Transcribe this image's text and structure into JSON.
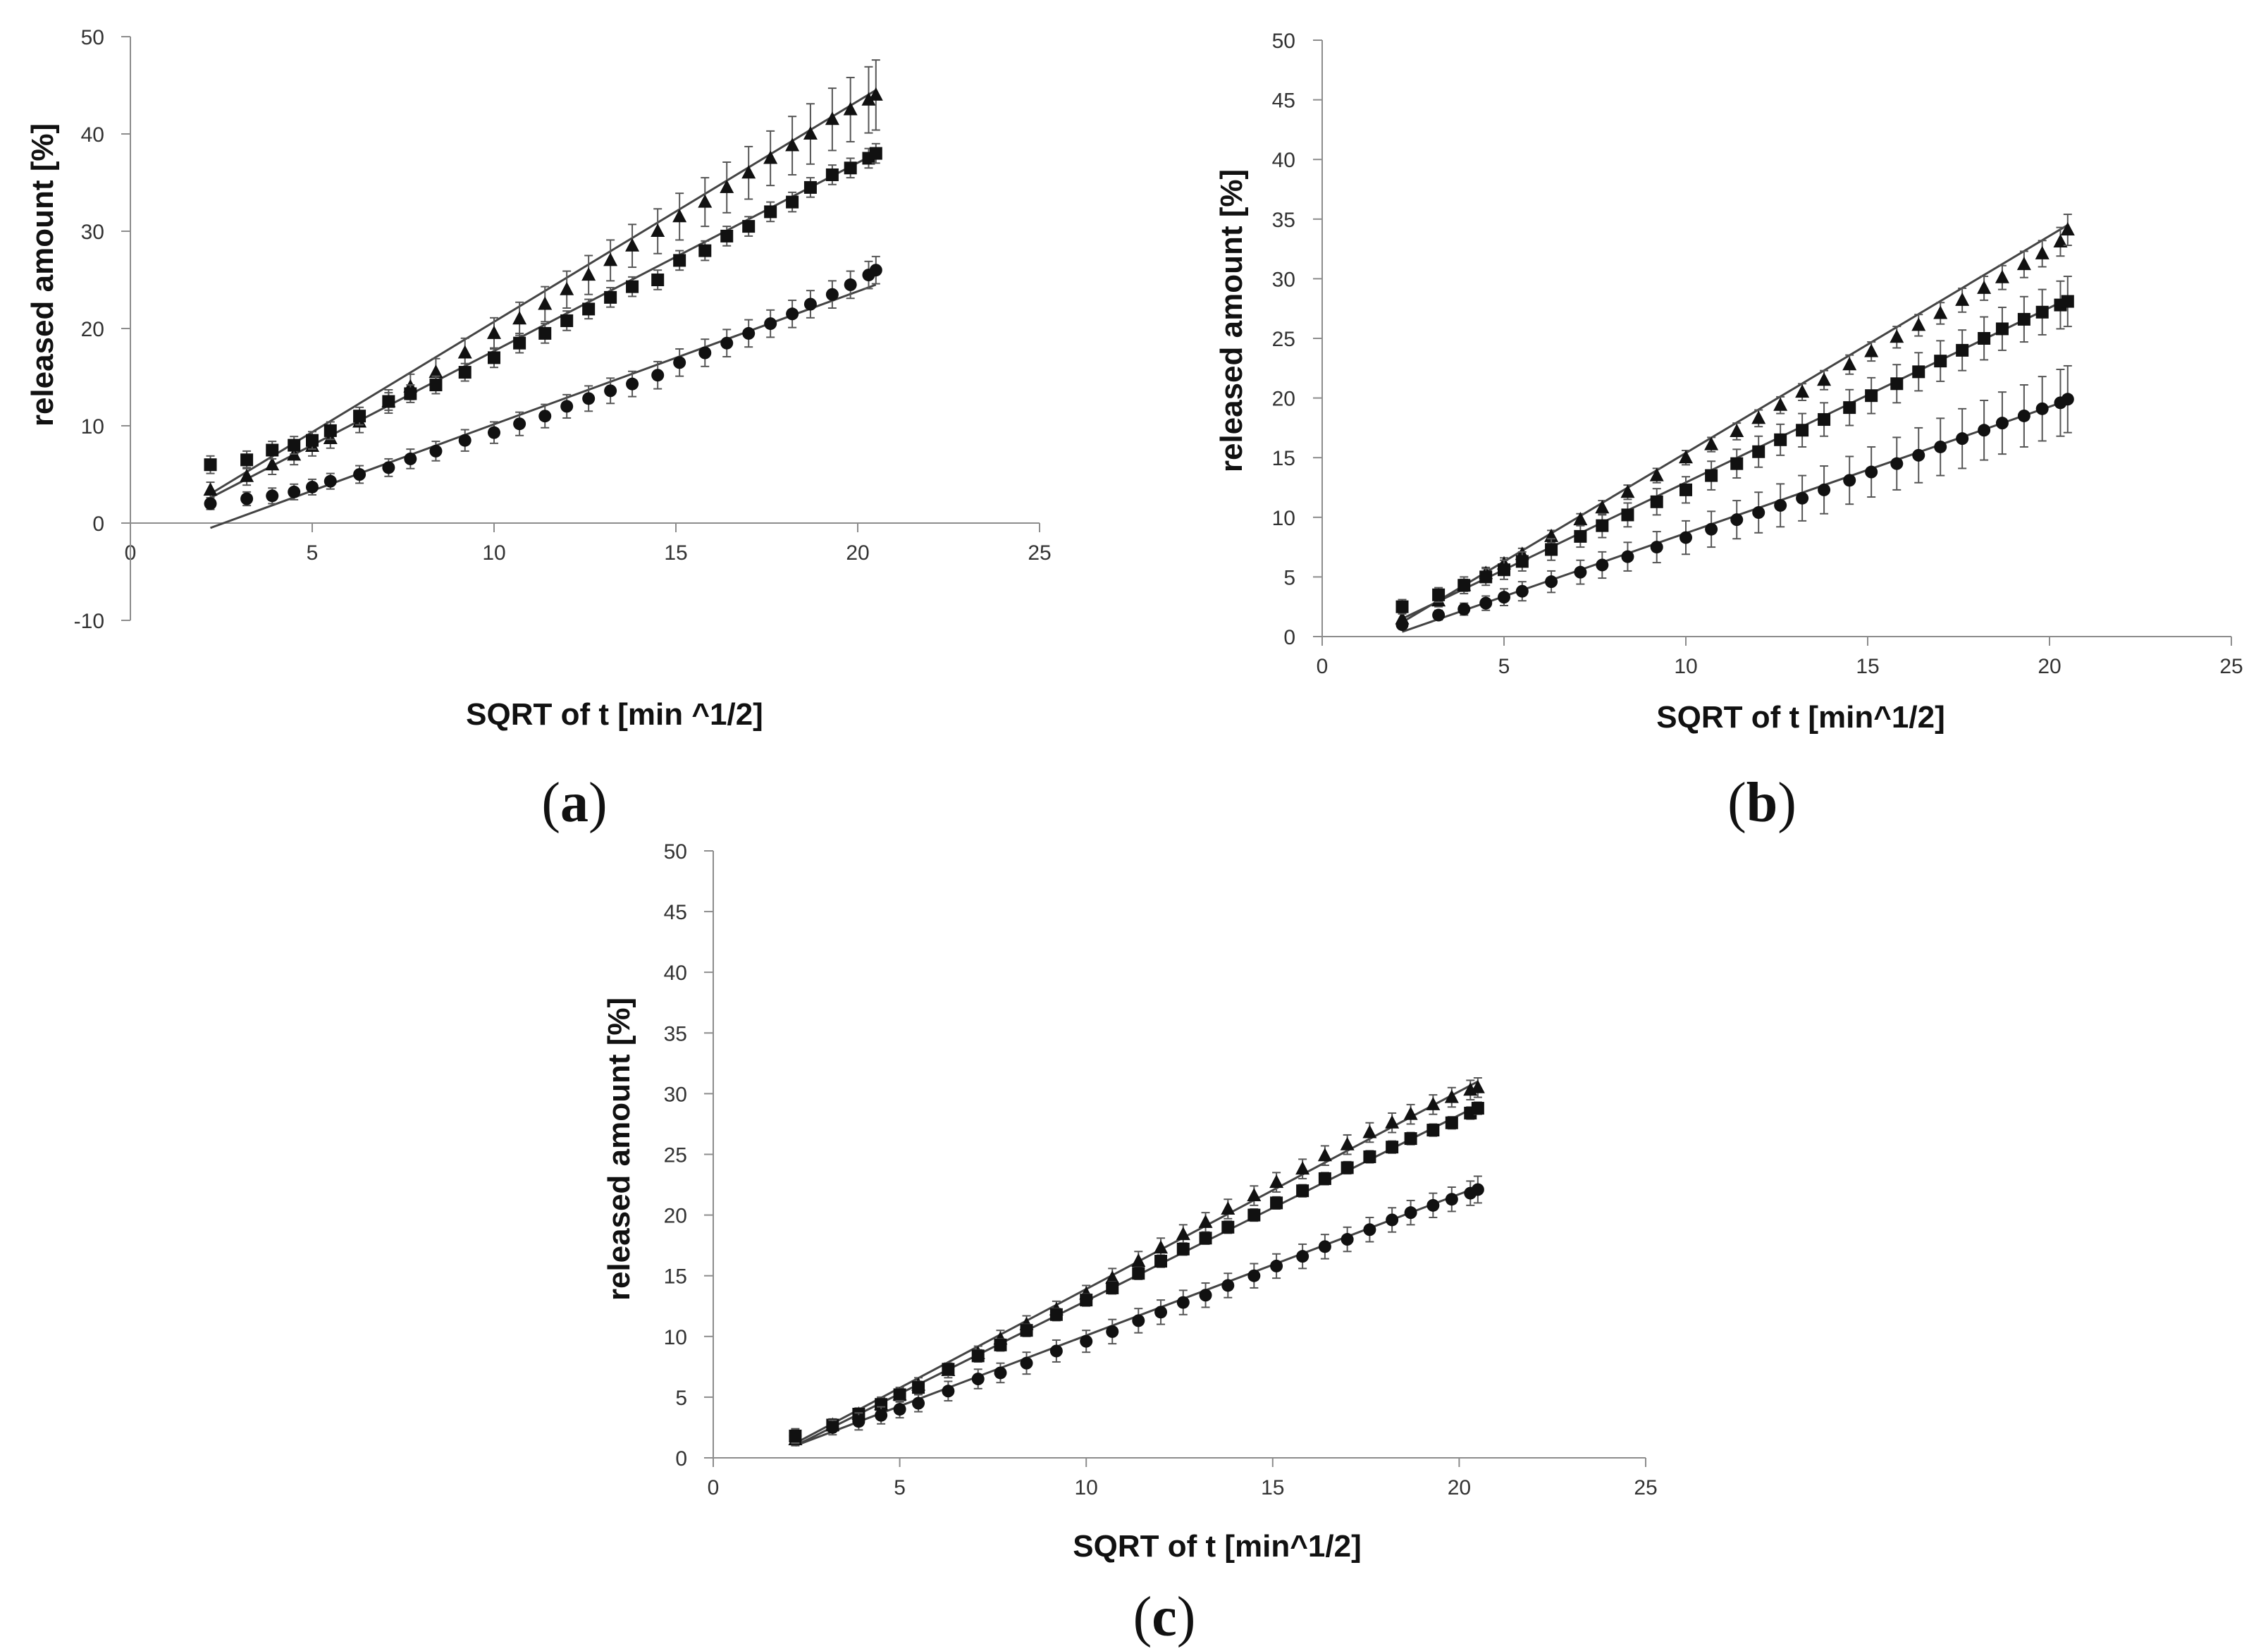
{
  "figure": {
    "panels": [
      {
        "id": "a",
        "label_pre": "(",
        "label_letter": "a",
        "label_post": ")"
      },
      {
        "id": "b",
        "label_pre": "(",
        "label_letter": "b",
        "label_post": ")"
      },
      {
        "id": "c",
        "label_pre": "(",
        "label_letter": "c",
        "label_post": ")"
      }
    ]
  },
  "chart_data": [
    {
      "id": "a",
      "type": "scatter",
      "xlabel": "SQRT of t [min ^1/2]",
      "ylabel": "released amount [%]",
      "xlim": [
        0,
        25
      ],
      "ylim": [
        -10,
        50
      ],
      "xticks": [
        0,
        5,
        10,
        15,
        20,
        25
      ],
      "yticks": [
        -10,
        0,
        10,
        20,
        30,
        40,
        50
      ],
      "x": [
        2.2,
        3.2,
        3.9,
        4.5,
        5.0,
        5.5,
        6.3,
        7.1,
        7.7,
        8.4,
        9.2,
        10.0,
        10.7,
        11.4,
        12.0,
        12.6,
        13.2,
        13.8,
        14.5,
        15.1,
        15.8,
        16.4,
        17.0,
        17.6,
        18.2,
        18.7,
        19.3,
        19.8,
        20.3,
        20.5
      ],
      "series": [
        {
          "name": "triangle",
          "marker": "triangle",
          "values": [
            3.4,
            4.8,
            6.0,
            7.0,
            7.9,
            8.7,
            10.4,
            12.5,
            14.0,
            15.5,
            17.5,
            19.5,
            21.0,
            22.5,
            24.0,
            25.5,
            27.0,
            28.5,
            30.0,
            31.5,
            33.0,
            34.5,
            36.0,
            37.5,
            38.8,
            40.0,
            41.5,
            42.5,
            43.5,
            44.0
          ],
          "err": [
            0.8,
            0.9,
            1.0,
            1.0,
            1.0,
            1.0,
            1.1,
            1.2,
            1.3,
            1.4,
            1.5,
            1.6,
            1.7,
            1.8,
            1.9,
            2.0,
            2.1,
            2.2,
            2.3,
            2.4,
            2.5,
            2.6,
            2.7,
            2.8,
            3.0,
            3.1,
            3.2,
            3.3,
            3.4,
            3.6
          ],
          "fit": [
            [
              2.2,
              3.0
            ],
            [
              20.5,
              44.5
            ]
          ]
        },
        {
          "name": "square",
          "marker": "square",
          "values": [
            6.0,
            6.5,
            7.5,
            8.0,
            8.5,
            9.5,
            11.0,
            12.5,
            13.3,
            14.2,
            15.5,
            17.0,
            18.5,
            19.5,
            20.8,
            22.0,
            23.2,
            24.3,
            25.0,
            27.0,
            28.0,
            29.5,
            30.5,
            32.0,
            33.0,
            34.5,
            35.8,
            36.5,
            37.5,
            38.0
          ],
          "err": [
            0.9,
            0.9,
            0.9,
            0.9,
            0.9,
            0.9,
            0.9,
            0.9,
            0.9,
            0.9,
            0.9,
            1.0,
            1.0,
            1.0,
            1.0,
            1.0,
            1.0,
            1.0,
            1.0,
            1.0,
            1.0,
            1.0,
            1.0,
            1.0,
            1.0,
            1.0,
            1.0,
            1.0,
            1.0,
            1.0
          ],
          "fit": [
            [
              2.2,
              2.6
            ],
            [
              20.5,
              38.0
            ]
          ]
        },
        {
          "name": "circle",
          "marker": "circle",
          "values": [
            2.0,
            2.5,
            2.8,
            3.2,
            3.7,
            4.3,
            5.0,
            5.7,
            6.6,
            7.4,
            8.5,
            9.3,
            10.2,
            11.0,
            12.0,
            12.8,
            13.6,
            14.3,
            15.2,
            16.5,
            17.5,
            18.5,
            19.5,
            20.5,
            21.5,
            22.5,
            23.5,
            24.5,
            25.5,
            26.0
          ],
          "err": [
            0.6,
            0.7,
            0.8,
            0.8,
            0.8,
            0.8,
            0.9,
            0.9,
            1.0,
            1.0,
            1.1,
            1.1,
            1.2,
            1.2,
            1.2,
            1.3,
            1.3,
            1.3,
            1.4,
            1.4,
            1.4,
            1.4,
            1.4,
            1.4,
            1.4,
            1.4,
            1.4,
            1.4,
            1.4,
            1.4
          ],
          "fit": [
            [
              2.2,
              -0.5
            ],
            [
              20.5,
              24.5
            ]
          ]
        }
      ]
    },
    {
      "id": "b",
      "type": "scatter",
      "xlabel": "SQRT of t [min^1/2]",
      "ylabel": "released amount [%]",
      "xlim": [
        0,
        25
      ],
      "ylim": [
        0,
        50
      ],
      "xticks": [
        0,
        5,
        10,
        15,
        20,
        25
      ],
      "yticks": [
        0,
        5,
        10,
        15,
        20,
        25,
        30,
        35,
        40,
        45,
        50
      ],
      "x": [
        2.2,
        3.2,
        3.9,
        4.5,
        5.0,
        5.5,
        6.3,
        7.1,
        7.7,
        8.4,
        9.2,
        10.0,
        10.7,
        11.4,
        12.0,
        12.6,
        13.2,
        13.8,
        14.5,
        15.1,
        15.8,
        16.4,
        17.0,
        17.6,
        18.2,
        18.7,
        19.3,
        19.8,
        20.3,
        20.5
      ],
      "series": [
        {
          "name": "triangle",
          "marker": "triangle",
          "values": [
            1.5,
            3.0,
            4.3,
            5.3,
            6.1,
            6.9,
            8.4,
            9.8,
            10.8,
            12.1,
            13.5,
            15.0,
            16.1,
            17.2,
            18.3,
            19.4,
            20.5,
            21.5,
            22.8,
            23.9,
            25.1,
            26.1,
            27.1,
            28.2,
            29.2,
            30.1,
            31.2,
            32.1,
            33.1,
            34.1
          ],
          "err": [
            0.5,
            0.5,
            0.5,
            0.5,
            0.5,
            0.5,
            0.5,
            0.5,
            0.6,
            0.6,
            0.6,
            0.6,
            0.6,
            0.7,
            0.7,
            0.7,
            0.7,
            0.8,
            0.8,
            0.8,
            0.9,
            0.9,
            0.9,
            1.0,
            1.0,
            1.0,
            1.1,
            1.1,
            1.2,
            1.3
          ],
          "fit": [
            [
              2.2,
              1.2
            ],
            [
              20.5,
              34.5
            ]
          ]
        },
        {
          "name": "square",
          "marker": "square",
          "values": [
            2.5,
            3.5,
            4.3,
            5.0,
            5.6,
            6.3,
            7.3,
            8.4,
            9.3,
            10.2,
            11.3,
            12.3,
            13.5,
            14.5,
            15.5,
            16.5,
            17.3,
            18.2,
            19.2,
            20.2,
            21.2,
            22.2,
            23.1,
            24.0,
            25.0,
            25.8,
            26.6,
            27.2,
            27.8,
            28.1
          ],
          "err": [
            0.6,
            0.6,
            0.7,
            0.7,
            0.8,
            0.8,
            0.9,
            0.9,
            1.0,
            1.0,
            1.1,
            1.1,
            1.2,
            1.2,
            1.3,
            1.3,
            1.4,
            1.4,
            1.5,
            1.5,
            1.6,
            1.6,
            1.7,
            1.7,
            1.8,
            1.8,
            1.9,
            1.9,
            2.0,
            2.1
          ],
          "fit": [
            [
              2.2,
              1.5
            ],
            [
              20.5,
              28.3
            ]
          ]
        },
        {
          "name": "circle",
          "marker": "circle",
          "values": [
            1.0,
            1.8,
            2.3,
            2.8,
            3.3,
            3.8,
            4.6,
            5.4,
            6.0,
            6.7,
            7.5,
            8.3,
            9.0,
            9.8,
            10.4,
            11.0,
            11.6,
            12.3,
            13.1,
            13.8,
            14.5,
            15.2,
            15.9,
            16.6,
            17.3,
            17.9,
            18.5,
            19.1,
            19.6,
            19.9
          ],
          "err": [
            0.3,
            0.4,
            0.5,
            0.6,
            0.7,
            0.8,
            0.9,
            1.0,
            1.1,
            1.2,
            1.3,
            1.4,
            1.5,
            1.6,
            1.7,
            1.8,
            1.9,
            2.0,
            2.0,
            2.1,
            2.2,
            2.3,
            2.4,
            2.5,
            2.5,
            2.6,
            2.6,
            2.7,
            2.8,
            2.8
          ],
          "fit": [
            [
              2.2,
              0.4
            ],
            [
              20.5,
              19.8
            ]
          ]
        }
      ]
    },
    {
      "id": "c",
      "type": "scatter",
      "xlabel": "SQRT of t [min^1/2]",
      "ylabel": "released amount [%]",
      "xlim": [
        0,
        25
      ],
      "ylim": [
        0,
        50
      ],
      "xticks": [
        0,
        5,
        10,
        15,
        20,
        25
      ],
      "yticks": [
        0,
        5,
        10,
        15,
        20,
        25,
        30,
        35,
        40,
        45,
        50
      ],
      "x": [
        2.2,
        3.2,
        3.9,
        4.5,
        5.0,
        5.5,
        6.3,
        7.1,
        7.7,
        8.4,
        9.2,
        10.0,
        10.7,
        11.4,
        12.0,
        12.6,
        13.2,
        13.8,
        14.5,
        15.1,
        15.8,
        16.4,
        17.0,
        17.6,
        18.2,
        18.7,
        19.3,
        19.8,
        20.3,
        20.5
      ],
      "series": [
        {
          "name": "triangle",
          "marker": "triangle",
          "values": [
            1.5,
            2.7,
            3.6,
            4.4,
            5.2,
            6.0,
            7.2,
            8.6,
            9.8,
            11.0,
            12.2,
            13.5,
            14.8,
            16.2,
            17.3,
            18.4,
            19.4,
            20.5,
            21.6,
            22.7,
            23.8,
            24.9,
            25.8,
            26.8,
            27.6,
            28.3,
            29.1,
            29.7,
            30.3,
            30.5
          ],
          "err": [
            0.5,
            0.5,
            0.5,
            0.6,
            0.6,
            0.6,
            0.6,
            0.6,
            0.7,
            0.7,
            0.7,
            0.7,
            0.8,
            0.8,
            0.8,
            0.8,
            0.8,
            0.8,
            0.8,
            0.8,
            0.8,
            0.8,
            0.8,
            0.8,
            0.8,
            0.8,
            0.8,
            0.8,
            0.8,
            0.8
          ],
          "fit": [
            [
              2.2,
              1.2
            ],
            [
              20.5,
              31.0
            ]
          ]
        },
        {
          "name": "square",
          "marker": "square",
          "values": [
            1.8,
            2.7,
            3.6,
            4.4,
            5.2,
            5.8,
            7.3,
            8.4,
            9.3,
            10.5,
            11.8,
            13.0,
            14.0,
            15.2,
            16.2,
            17.2,
            18.1,
            19.0,
            20.0,
            21.0,
            22.0,
            23.0,
            23.9,
            24.8,
            25.6,
            26.3,
            27.0,
            27.6,
            28.4,
            28.8
          ],
          "err": [
            0.5,
            0.5,
            0.5,
            0.5,
            0.5,
            0.5,
            0.5,
            0.5,
            0.5,
            0.5,
            0.5,
            0.5,
            0.5,
            0.5,
            0.5,
            0.5,
            0.5,
            0.5,
            0.5,
            0.5,
            0.5,
            0.5,
            0.5,
            0.5,
            0.5,
            0.5,
            0.5,
            0.5,
            0.5,
            0.5
          ],
          "fit": [
            [
              2.2,
              1.0
            ],
            [
              20.5,
              29.0
            ]
          ]
        },
        {
          "name": "circle",
          "marker": "circle",
          "values": [
            1.8,
            2.5,
            3.0,
            3.5,
            4.0,
            4.5,
            5.5,
            6.5,
            7.0,
            7.8,
            8.8,
            9.6,
            10.4,
            11.3,
            12.0,
            12.8,
            13.4,
            14.2,
            15.0,
            15.8,
            16.6,
            17.4,
            18.0,
            18.8,
            19.6,
            20.2,
            20.8,
            21.3,
            21.8,
            22.1
          ],
          "err": [
            0.6,
            0.6,
            0.7,
            0.7,
            0.7,
            0.7,
            0.8,
            0.8,
            0.8,
            0.9,
            0.9,
            0.9,
            1.0,
            1.0,
            1.0,
            1.0,
            1.0,
            1.0,
            1.0,
            1.0,
            1.0,
            1.0,
            1.0,
            1.0,
            1.0,
            1.0,
            1.0,
            1.0,
            1.0,
            1.1
          ],
          "fit": [
            [
              2.2,
              1.0
            ],
            [
              20.5,
              22.3
            ]
          ]
        }
      ]
    }
  ]
}
